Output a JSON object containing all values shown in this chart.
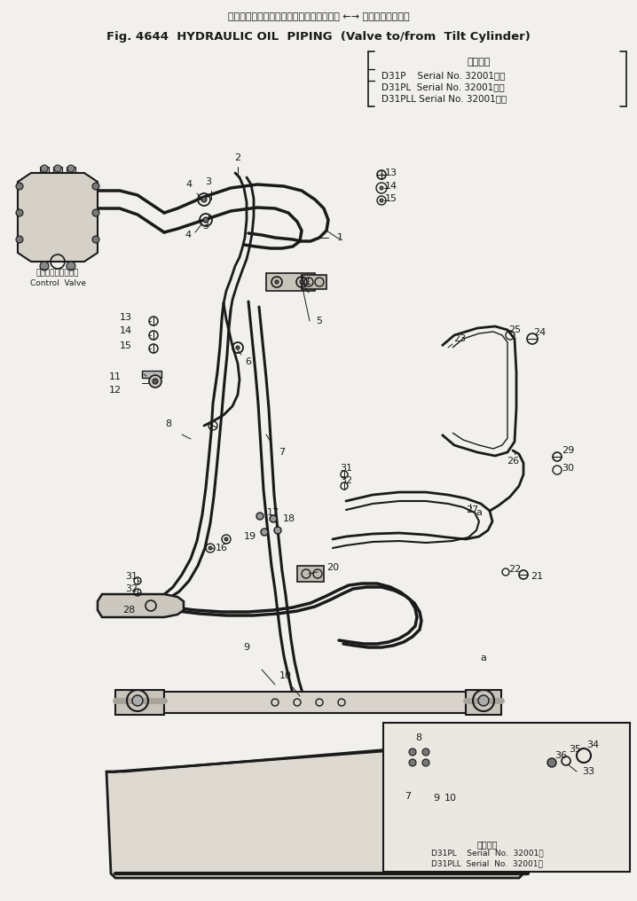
{
  "title_line1_jp": "ハイドロリックオイルパイピング（バルブ ←→ チルトシリンダ）",
  "title_line2_en": "Fig. 4644  HYDRAULIC OIL  PIPING  (Valve to/from  Tilt Cylinder)",
  "serial_header": "適用号機",
  "serial_line1": "D31P    Serial No. 32001～）",
  "serial_line2": "D31PL  Serial No. 32001～）",
  "serial_line3": "D31PLL Serial No. 32001～）",
  "cv_jp": "コントロールバルブ",
  "cv_en": "Control  Valve",
  "inset_header": "油用号機",
  "inset_s1": "D31PL    Serial  No.  32001～",
  "inset_s2": "D31PLL  Serial  No.  32001～",
  "bg": "#f2f0ec",
  "lc": "#1a1a1a",
  "figsize": [
    7.18,
    10.16
  ],
  "dpi": 100
}
